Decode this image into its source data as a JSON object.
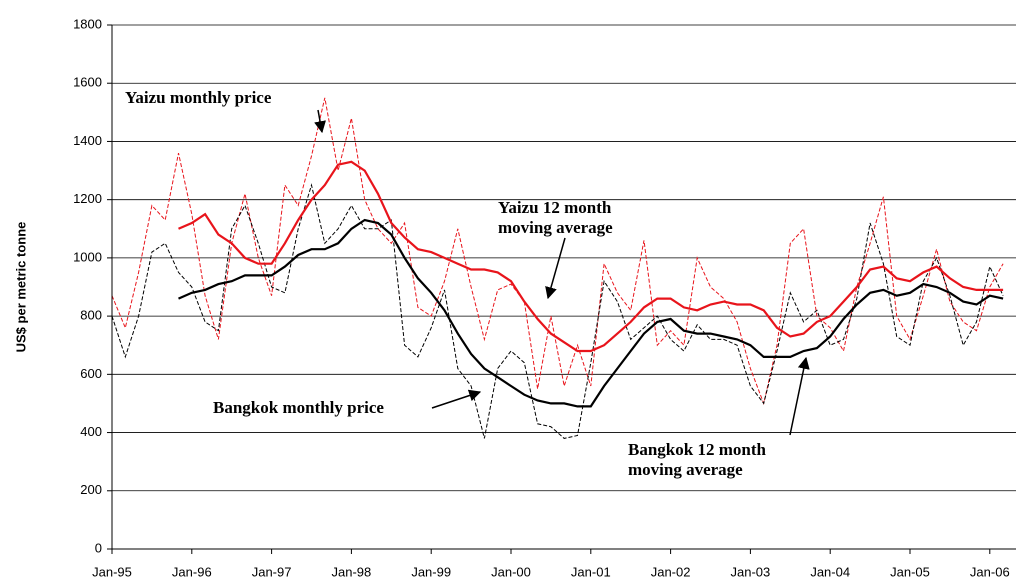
{
  "chart_data": {
    "type": "line",
    "y_label": "US$ per metric tonne",
    "categories": [
      "Jan-95",
      null,
      null,
      null,
      null,
      null,
      "Jan-96",
      null,
      null,
      null,
      null,
      null,
      "Jan-97",
      null,
      null,
      null,
      null,
      null,
      "Jan-98",
      null,
      null,
      null,
      null,
      null,
      "Jan-99",
      null,
      null,
      null,
      null,
      null,
      "Jan-00",
      null,
      null,
      null,
      null,
      null,
      "Jan-01",
      null,
      null,
      null,
      null,
      null,
      "Jan-02",
      null,
      null,
      null,
      null,
      null,
      "Jan-03",
      null,
      null,
      null,
      null,
      null,
      "Jan-04",
      null,
      null,
      null,
      null,
      null,
      "Jan-05",
      null,
      null,
      null,
      null,
      null,
      "Jan-06",
      null
    ],
    "ylim": [
      0,
      1800
    ],
    "yticks": [
      0,
      200,
      400,
      600,
      800,
      1000,
      1200,
      1400,
      1600,
      1800
    ],
    "grid": true,
    "series": [
      {
        "name": "Yaizu monthly price",
        "color": "#e8141b",
        "dash": true,
        "values": [
          870,
          760,
          950,
          1180,
          1130,
          1360,
          1150,
          870,
          720,
          1050,
          1220,
          1000,
          870,
          1250,
          1180,
          1350,
          1550,
          1300,
          1480,
          1200,
          1100,
          1050,
          1120,
          830,
          800,
          920,
          1100,
          900,
          720,
          890,
          910,
          850,
          550,
          800,
          560,
          700,
          560,
          980,
          880,
          820,
          1060,
          700,
          750,
          700,
          1000,
          900,
          860,
          780,
          620,
          500,
          700,
          1050,
          1100,
          800,
          760,
          680,
          900,
          1050,
          1210,
          800,
          720,
          870,
          1030,
          850,
          780,
          750,
          900,
          980
        ]
      },
      {
        "name": "Bangkok monthly price",
        "color": "#000000",
        "dash": true,
        "values": [
          800,
          660,
          800,
          1020,
          1050,
          950,
          900,
          780,
          750,
          1100,
          1180,
          1050,
          900,
          880,
          1100,
          1250,
          1050,
          1100,
          1180,
          1100,
          1100,
          1130,
          700,
          660,
          760,
          890,
          620,
          560,
          380,
          620,
          680,
          640,
          430,
          420,
          380,
          390,
          640,
          920,
          850,
          720,
          760,
          800,
          720,
          680,
          770,
          720,
          720,
          700,
          560,
          500,
          680,
          880,
          780,
          820,
          700,
          720,
          860,
          1120,
          980,
          730,
          700,
          920,
          1000,
          870,
          700,
          780,
          970,
          870
        ]
      },
      {
        "name": "Yaizu 12 month moving average",
        "color": "#e8141b",
        "dash": false,
        "values": [
          null,
          null,
          null,
          null,
          null,
          1100,
          1120,
          1150,
          1080,
          1050,
          1000,
          980,
          980,
          1050,
          1130,
          1200,
          1250,
          1320,
          1330,
          1300,
          1220,
          1120,
          1070,
          1030,
          1020,
          1000,
          980,
          960,
          960,
          950,
          920,
          850,
          790,
          740,
          710,
          680,
          680,
          700,
          740,
          780,
          830,
          860,
          860,
          830,
          820,
          840,
          850,
          840,
          840,
          820,
          760,
          730,
          740,
          780,
          800,
          850,
          900,
          960,
          970,
          930,
          920,
          950,
          970,
          930,
          900,
          890,
          890,
          890
        ]
      },
      {
        "name": "Bangkok 12 month moving average",
        "color": "#000000",
        "dash": false,
        "values": [
          null,
          null,
          null,
          null,
          null,
          860,
          880,
          890,
          910,
          920,
          940,
          940,
          940,
          970,
          1010,
          1030,
          1030,
          1050,
          1100,
          1130,
          1120,
          1080,
          1000,
          930,
          880,
          820,
          740,
          670,
          620,
          590,
          560,
          530,
          510,
          500,
          500,
          490,
          490,
          560,
          620,
          680,
          740,
          780,
          790,
          750,
          740,
          740,
          730,
          720,
          700,
          660,
          660,
          660,
          680,
          690,
          730,
          790,
          840,
          880,
          890,
          870,
          880,
          910,
          900,
          880,
          850,
          840,
          870,
          860
        ]
      }
    ]
  }
}
